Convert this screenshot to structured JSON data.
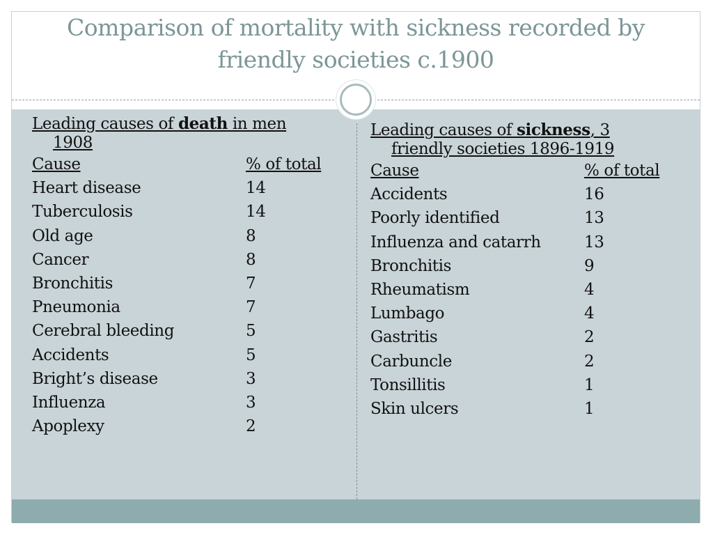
{
  "title": "Comparison of mortality with sickness recorded by friendly societies c.1900",
  "left": {
    "heading_prefix": "Leading causes of ",
    "heading_bold": "death",
    "heading_suffix": " in men",
    "heading_line2": "1908",
    "col_cause": "Cause",
    "col_pct": "% of total",
    "rows": [
      {
        "cause": "Heart disease",
        "pct": "14"
      },
      {
        "cause": "Tuberculosis",
        "pct": "14"
      },
      {
        "cause": "Old age",
        "pct": "8"
      },
      {
        "cause": "Cancer",
        "pct": "8"
      },
      {
        "cause": "Bronchitis",
        "pct": "7"
      },
      {
        "cause": "Pneumonia",
        "pct": "7"
      },
      {
        "cause": "Cerebral bleeding",
        "pct": "5"
      },
      {
        "cause": "Accidents",
        "pct": "5"
      },
      {
        "cause": "Bright’s disease",
        "pct": "3"
      },
      {
        "cause": "Influenza",
        "pct": "3"
      },
      {
        "cause": "Apoplexy",
        "pct": "2"
      }
    ]
  },
  "right": {
    "heading_prefix": "Leading causes of ",
    "heading_bold": "sickness",
    "heading_suffix": ", 3",
    "heading_line2": "friendly societies 1896-1919",
    "col_cause": "Cause",
    "col_pct": "% of total",
    "rows": [
      {
        "cause": "Accidents",
        "pct": "16"
      },
      {
        "cause": "Poorly identified",
        "pct": "13"
      },
      {
        "cause": "Influenza and catarrh",
        "pct": "13"
      },
      {
        "cause": "Bronchitis",
        "pct": "9"
      },
      {
        "cause": "Rheumatism",
        "pct": "4"
      },
      {
        "cause": "Lumbago",
        "pct": "4"
      },
      {
        "cause": "Gastritis",
        "pct": "2"
      },
      {
        "cause": "Carbuncle",
        "pct": "2"
      },
      {
        "cause": "Tonsillitis",
        "pct": "1"
      },
      {
        "cause": "Skin ulcers",
        "pct": "1"
      }
    ]
  }
}
